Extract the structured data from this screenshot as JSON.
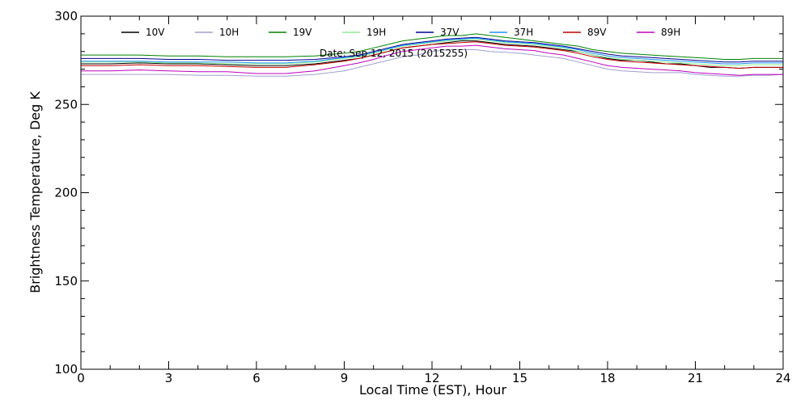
{
  "chart_data": {
    "type": "line",
    "title": "",
    "annotation": "Date: Sep 12, 2015 (2015255)",
    "xlabel": "Local Time (EST), Hour",
    "ylabel": "Brightness Temperature, Deg K",
    "xlim": [
      0,
      24
    ],
    "ylim": [
      100,
      300
    ],
    "xticks": [
      0,
      3,
      6,
      9,
      12,
      15,
      18,
      21,
      24
    ],
    "yticks": [
      100,
      150,
      200,
      250,
      300
    ],
    "grid": false,
    "legend_position": "top",
    "x": [
      0,
      1,
      2,
      3,
      4,
      5,
      6,
      7,
      8,
      9,
      9.5,
      10,
      10.5,
      11,
      11.5,
      12,
      12.5,
      13,
      13.5,
      14,
      14.5,
      15,
      15.5,
      16,
      16.5,
      17,
      17.5,
      18,
      18.5,
      19,
      19.5,
      20,
      20.5,
      21,
      21.5,
      22,
      22.5,
      23,
      23.5,
      24
    ],
    "series": [
      {
        "name": "10V",
        "color": "#000000",
        "values": [
          273,
          273,
          273.5,
          273,
          273,
          272.5,
          272,
          272,
          273,
          275,
          276,
          278,
          280,
          282,
          283,
          284,
          285,
          286,
          286,
          285,
          284,
          283.5,
          283,
          282,
          281,
          280,
          278,
          276,
          275,
          275,
          274,
          273,
          273,
          272,
          271,
          271,
          270.5,
          271,
          271,
          271
        ]
      },
      {
        "name": "10H",
        "color": "#a0a0d0",
        "values": [
          267,
          267,
          267,
          267,
          266.5,
          266.5,
          266,
          266,
          267,
          269,
          271,
          273,
          275,
          277,
          278,
          280,
          281,
          281,
          281,
          280,
          279.5,
          279,
          278,
          277,
          276,
          274,
          272,
          270,
          269,
          268.5,
          268,
          268,
          268,
          267,
          266.5,
          266,
          266,
          266.5,
          266.5,
          267
        ]
      },
      {
        "name": "19V",
        "color": "#008000",
        "values": [
          278,
          278,
          278,
          277.5,
          277.5,
          277,
          277,
          277,
          277.5,
          279,
          280,
          282,
          284,
          286,
          287,
          288,
          289,
          289,
          290,
          289,
          288,
          287,
          286,
          285,
          284,
          283,
          281,
          280,
          279,
          278.5,
          278,
          277.5,
          277,
          276.5,
          276,
          275.5,
          275.5,
          276,
          276,
          276
        ]
      },
      {
        "name": "19H",
        "color": "#90ee90",
        "values": [
          274,
          274,
          274,
          273.5,
          273.5,
          273,
          273,
          273,
          274,
          276,
          277,
          279,
          281,
          283,
          284,
          285,
          286,
          286.5,
          287,
          286,
          285,
          284.5,
          284,
          283,
          282,
          280,
          278,
          276.5,
          275.5,
          275,
          274.5,
          274,
          273.5,
          273,
          272.5,
          272,
          272,
          272.5,
          272.5,
          272.5
        ]
      },
      {
        "name": "37V",
        "color": "#00008b",
        "values": [
          276,
          276,
          276,
          275.5,
          275.5,
          275,
          275,
          275,
          275.5,
          277,
          278,
          280,
          282,
          284,
          285,
          286,
          287,
          287.5,
          288,
          287,
          286,
          285.5,
          285,
          284,
          283,
          281.5,
          280,
          278.5,
          277.5,
          277,
          276.5,
          276,
          275.5,
          275,
          274.5,
          274,
          274,
          274.5,
          274.5,
          274.5
        ]
      },
      {
        "name": "37H",
        "color": "#1e90ff",
        "values": [
          274.5,
          274.5,
          274.5,
          274,
          274,
          274,
          273.5,
          273.5,
          274.5,
          276.5,
          277.5,
          279.5,
          281.5,
          283.5,
          284.5,
          285.5,
          286.5,
          287,
          287.5,
          286.5,
          285.5,
          285,
          284.5,
          283.5,
          282.5,
          281,
          279,
          277.5,
          276.5,
          276,
          275.5,
          275,
          274.5,
          274,
          273.5,
          273,
          273,
          273.5,
          273.5,
          273.5
        ]
      },
      {
        "name": "89V",
        "color": "#c00000",
        "values": [
          272,
          272,
          272.5,
          272,
          272,
          271.5,
          271,
          271,
          272.5,
          274.5,
          276,
          278,
          280,
          282,
          283,
          284,
          284.5,
          285,
          285.5,
          284.5,
          283.5,
          283,
          282.5,
          281.5,
          280.5,
          279,
          277,
          275.5,
          274.5,
          274,
          273.5,
          273,
          272.5,
          272,
          271.5,
          271,
          270.5,
          271,
          271,
          271
        ]
      },
      {
        "name": "89H",
        "color": "#c000c0",
        "values": [
          269,
          269,
          269.5,
          269,
          268.5,
          268.5,
          267.5,
          267.5,
          269,
          272,
          273.5,
          275.5,
          278,
          280,
          281,
          282,
          283,
          283,
          283.5,
          282.5,
          281.5,
          281,
          280.5,
          279,
          278,
          276,
          274,
          272,
          271,
          270.5,
          270,
          269.5,
          269,
          268,
          267.5,
          267,
          266.5,
          267,
          267,
          267
        ]
      }
    ]
  }
}
